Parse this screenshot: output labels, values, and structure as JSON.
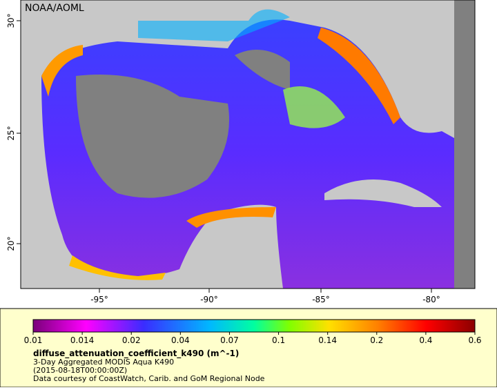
{
  "map": {
    "watermark": "NOAA/AOML",
    "lon_labels": [
      "-95°",
      "-90°",
      "-85°",
      "-80°"
    ],
    "lat_labels": [
      "30°",
      "25°",
      "20°"
    ]
  },
  "legend": {
    "tick_labels": [
      "0.01",
      "0.014",
      "0.02",
      "0.04",
      "0.07",
      "0.1",
      "0.14",
      "0.2",
      "0.4",
      "0.6"
    ],
    "variable": "diffuse_attenuation_coefficient_k490 (m^-1)",
    "description": "3-Day Aggregated MODIS Aqua K490",
    "time": "(2015-08-18T00:00:00Z)",
    "credit": "Data courtesy of CoastWatch, Carib. and GoM Regional Node"
  }
}
